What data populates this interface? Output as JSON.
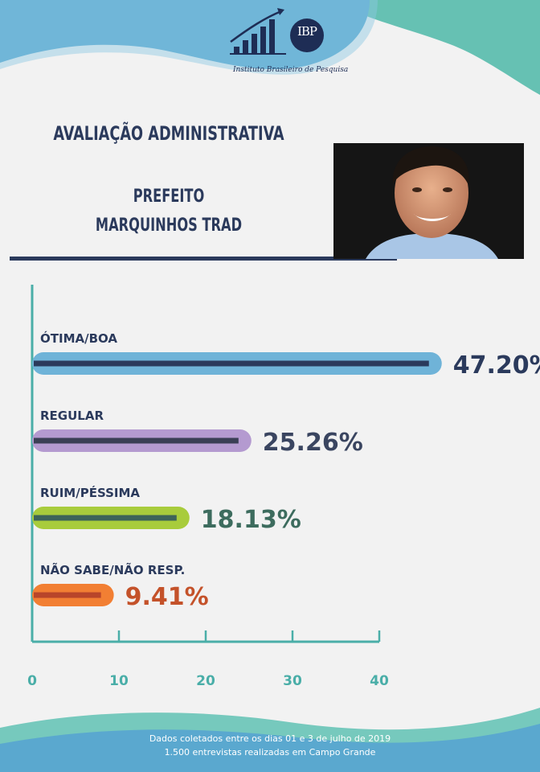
{
  "header": {
    "logo_abbr": "IBP",
    "logo_name": "Instituto Brasileiro de Pesquisa",
    "title": "AVALIAÇÃO ADMINISTRATIVA",
    "role": "PREFEITO",
    "name": "MARQUINHOS TRAD"
  },
  "footer": {
    "line1": "Dados coletados entre os dias 01 e 3 de julho de 2019",
    "line2": "1.500 entrevistas realizadas em Campo Grande"
  },
  "chart_data": {
    "type": "bar",
    "orientation": "horizontal",
    "categories": [
      "ÓTIMA/BOA",
      "REGULAR",
      "RUIM/PÉSSIMA",
      "NÃO SABE/NÃO RESP."
    ],
    "values": [
      47.2,
      25.26,
      18.13,
      9.41
    ],
    "value_labels": [
      "47.20%",
      "25.26%",
      "18.13%",
      "9.41%"
    ],
    "xlim": [
      0,
      47.2
    ],
    "ticks": [
      0,
      10,
      20,
      30,
      40
    ],
    "tick_labels": [
      "0",
      "10",
      "20",
      "30",
      "40"
    ],
    "colors": {
      "outer": [
        "#6fb3d8",
        "#b49ad0",
        "#a8cc3c",
        "#f27f33"
      ],
      "inner": [
        "#2b3a5c",
        "#3a3f55",
        "#3d6459",
        "#b8452a"
      ],
      "value_text": [
        "#2b3a5c",
        "#3a4560",
        "#3d6c5e",
        "#c4522a"
      ]
    },
    "axis_color": "#4aaea8"
  }
}
